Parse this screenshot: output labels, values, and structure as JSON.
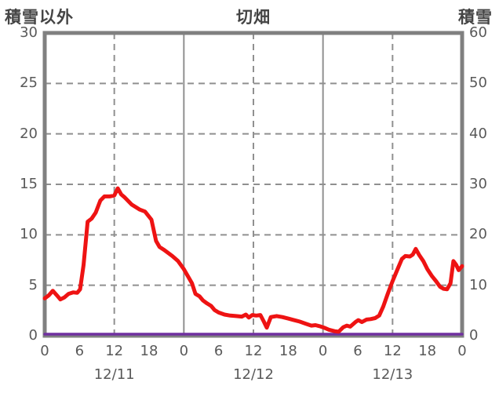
{
  "header": {
    "left_label": "積雪以外",
    "center_label": "切畑",
    "right_label": "積雪"
  },
  "colors": {
    "background": "#ffffff",
    "border": "#808080",
    "grid": "#909090",
    "tick_text": "#595959",
    "title_text": "#454545",
    "series_other_than_snow": "#ee1313",
    "series_snow_depth": "#7030a0"
  },
  "chart_data": {
    "type": "line",
    "title": "切畑",
    "x_unit": "hour",
    "x_range_hours": [
      0,
      72
    ],
    "x_tick_step_hours": 6,
    "x_tick_labels": [
      "0",
      "6",
      "12",
      "18",
      "0",
      "6",
      "12",
      "18",
      "0",
      "6",
      "12",
      "18",
      "0"
    ],
    "x_date_labels": [
      "12/11",
      "12/12",
      "12/13"
    ],
    "x_date_center_hours": [
      12,
      36,
      60
    ],
    "left_axis": {
      "label": "積雪以外",
      "range": [
        0,
        30
      ],
      "ticks": [
        0,
        5,
        10,
        15,
        20,
        25,
        30
      ]
    },
    "right_axis": {
      "label": "積雪",
      "range": [
        0,
        60
      ],
      "ticks": [
        0,
        10,
        20,
        30,
        40,
        50,
        60
      ]
    },
    "grid": {
      "horizontal_dashed_left_values": [
        5,
        10,
        15,
        20,
        25
      ],
      "vertical_solid_hours": [
        24,
        48
      ],
      "vertical_dashed_hours": [
        12,
        36,
        60
      ]
    },
    "series": [
      {
        "name": "積雪以外",
        "axis": "left",
        "color": "#ee1313",
        "width": 5,
        "points": [
          [
            0,
            3.7
          ],
          [
            0.7,
            4.0
          ],
          [
            1.4,
            4.45
          ],
          [
            2.1,
            4.0
          ],
          [
            2.7,
            3.6
          ],
          [
            3.4,
            3.8
          ],
          [
            4.1,
            4.15
          ],
          [
            4.9,
            4.3
          ],
          [
            5.6,
            4.25
          ],
          [
            6.1,
            4.6
          ],
          [
            6.7,
            7.0
          ],
          [
            7.4,
            11.3
          ],
          [
            8.1,
            11.6
          ],
          [
            8.8,
            12.2
          ],
          [
            9.6,
            13.4
          ],
          [
            10.3,
            13.8
          ],
          [
            11.2,
            13.8
          ],
          [
            12.0,
            13.9
          ],
          [
            12.6,
            14.6
          ],
          [
            13.2,
            14.0
          ],
          [
            13.8,
            13.7
          ],
          [
            15.0,
            13.0
          ],
          [
            16.4,
            12.5
          ],
          [
            17.3,
            12.3
          ],
          [
            18.4,
            11.5
          ],
          [
            19.2,
            9.4
          ],
          [
            19.8,
            8.8
          ],
          [
            20.6,
            8.5
          ],
          [
            21.3,
            8.2
          ],
          [
            22.0,
            7.9
          ],
          [
            23.0,
            7.4
          ],
          [
            24.0,
            6.6
          ],
          [
            24.7,
            5.9
          ],
          [
            25.4,
            5.2
          ],
          [
            26.0,
            4.15
          ],
          [
            26.7,
            3.9
          ],
          [
            27.3,
            3.5
          ],
          [
            28.0,
            3.2
          ],
          [
            28.7,
            2.95
          ],
          [
            29.3,
            2.55
          ],
          [
            30.0,
            2.3
          ],
          [
            31.0,
            2.1
          ],
          [
            32.0,
            2.0
          ],
          [
            33.0,
            1.95
          ],
          [
            34.0,
            1.9
          ],
          [
            34.7,
            2.1
          ],
          [
            35.2,
            1.8
          ],
          [
            35.8,
            2.05
          ],
          [
            36.5,
            2.0
          ],
          [
            37.2,
            2.05
          ],
          [
            37.8,
            1.4
          ],
          [
            38.3,
            0.8
          ],
          [
            39.0,
            1.85
          ],
          [
            40.0,
            1.95
          ],
          [
            41.0,
            1.85
          ],
          [
            42.0,
            1.7
          ],
          [
            43.0,
            1.55
          ],
          [
            44.0,
            1.4
          ],
          [
            45.0,
            1.2
          ],
          [
            46.0,
            1.0
          ],
          [
            46.7,
            1.05
          ],
          [
            47.4,
            0.95
          ],
          [
            48.2,
            0.8
          ],
          [
            49.0,
            0.6
          ],
          [
            50.0,
            0.45
          ],
          [
            50.7,
            0.4
          ],
          [
            51.5,
            0.85
          ],
          [
            52.1,
            1.0
          ],
          [
            52.7,
            0.9
          ],
          [
            53.6,
            1.35
          ],
          [
            54.1,
            1.55
          ],
          [
            54.7,
            1.35
          ],
          [
            55.5,
            1.6
          ],
          [
            56.2,
            1.65
          ],
          [
            57.0,
            1.75
          ],
          [
            57.7,
            2.0
          ],
          [
            58.4,
            2.9
          ],
          [
            59.2,
            4.2
          ],
          [
            60.0,
            5.4
          ],
          [
            60.8,
            6.5
          ],
          [
            61.6,
            7.6
          ],
          [
            62.2,
            7.9
          ],
          [
            63.0,
            7.85
          ],
          [
            63.5,
            8.05
          ],
          [
            64.0,
            8.6
          ],
          [
            64.6,
            8.0
          ],
          [
            65.3,
            7.4
          ],
          [
            66.0,
            6.6
          ],
          [
            66.8,
            5.9
          ],
          [
            67.5,
            5.4
          ],
          [
            68.2,
            4.85
          ],
          [
            68.8,
            4.65
          ],
          [
            69.4,
            4.6
          ],
          [
            70.0,
            5.2
          ],
          [
            70.5,
            7.4
          ],
          [
            71.0,
            7.0
          ],
          [
            71.4,
            6.5
          ],
          [
            72.0,
            6.9
          ]
        ]
      },
      {
        "name": "積雪",
        "axis": "right",
        "color": "#7030a0",
        "width": 3.5,
        "points": [
          [
            0,
            0
          ],
          [
            72,
            0
          ]
        ]
      }
    ]
  }
}
